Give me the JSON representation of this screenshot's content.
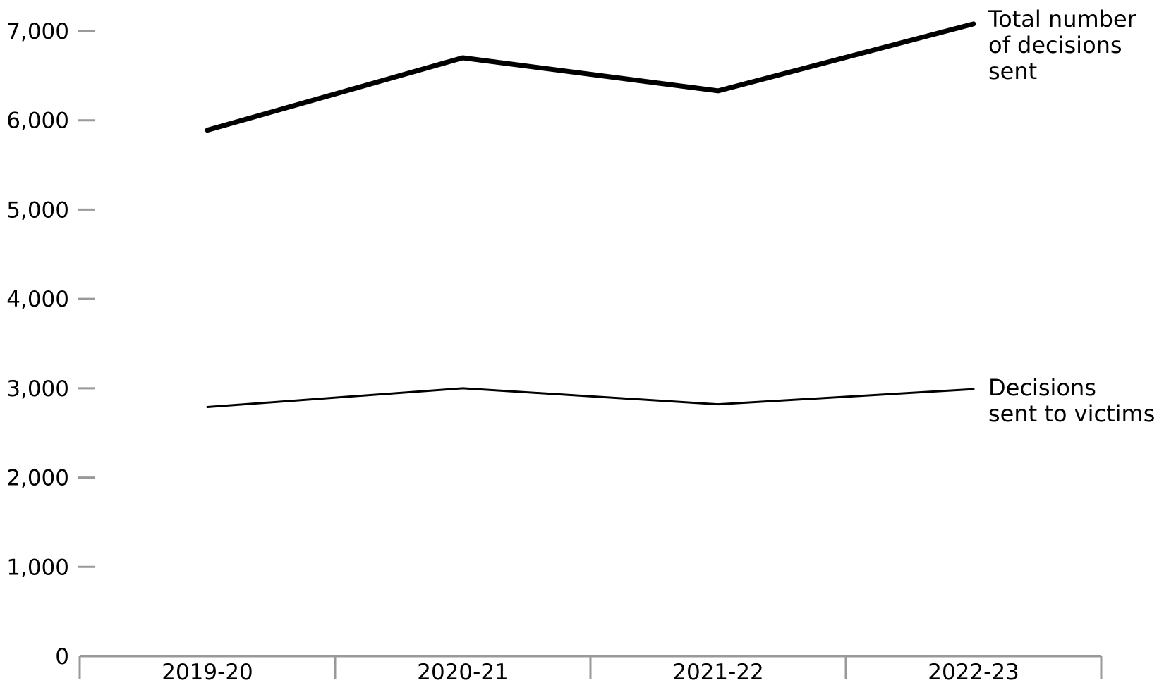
{
  "chart_data": {
    "type": "line",
    "title": "",
    "xlabel": "",
    "ylabel": "",
    "categories": [
      "2019-20",
      "2020-21",
      "2021-22",
      "2022-23"
    ],
    "ylim": [
      0,
      7000
    ],
    "yticks": [
      0,
      1000,
      2000,
      3000,
      4000,
      5000,
      6000,
      7000
    ],
    "ytick_labels": [
      "0",
      "1,000",
      "2,000",
      "3,000",
      "4,000",
      "5,000",
      "6,000",
      "7,000"
    ],
    "grid": false,
    "legend": "direct labels at line ends (right)",
    "series": [
      {
        "name": "Total number of decisions sent",
        "label_lines": [
          "Total number",
          "of decisions",
          "sent"
        ],
        "values": [
          5890,
          6700,
          6330,
          7080
        ],
        "color": "#000000",
        "weight": "thick"
      },
      {
        "name": "Decisions sent to victims",
        "label_lines": [
          "Decisions",
          "sent to victims"
        ],
        "values": [
          2790,
          3000,
          2820,
          2990
        ],
        "color": "#000000",
        "weight": "thin"
      }
    ],
    "axis_color": "#999999"
  }
}
